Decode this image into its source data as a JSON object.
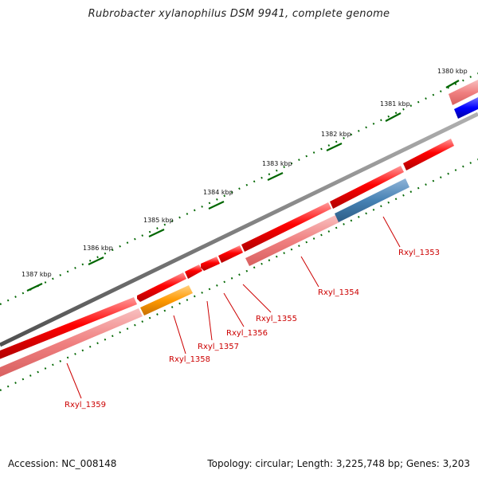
{
  "title": "Rubrobacter xylanophilus DSM 9941, complete genome",
  "footer": {
    "accession": "Accession: NC_008148",
    "summary": "Topology: circular; Length: 3,225,748 bp; Genes: 3,203"
  },
  "ticks": [
    {
      "label": "1380 kbp"
    },
    {
      "label": "1381 kbp"
    },
    {
      "label": "1382 kbp"
    },
    {
      "label": "1383 kbp"
    },
    {
      "label": "1384 kbp"
    },
    {
      "label": "1385 kbp"
    },
    {
      "label": "1386 kbp"
    },
    {
      "label": "1387 kbp"
    }
  ],
  "gene_labels": [
    {
      "label": "Rxyl_1353"
    },
    {
      "label": "Rxyl_1354"
    },
    {
      "label": "Rxyl_1355"
    },
    {
      "label": "Rxyl_1356"
    },
    {
      "label": "Rxyl_1357"
    },
    {
      "label": "Rxyl_1358"
    },
    {
      "label": "Rxyl_1359"
    }
  ],
  "colors": {
    "backbone": "#808080",
    "gene_red": "#ff0000",
    "rna_pink": "#f08080",
    "highlight_blue": "#4682b4",
    "orange": "#ff9900",
    "strong_blue": "#0000ff",
    "tick_green": "#006600",
    "label_red": "#cc0000"
  }
}
